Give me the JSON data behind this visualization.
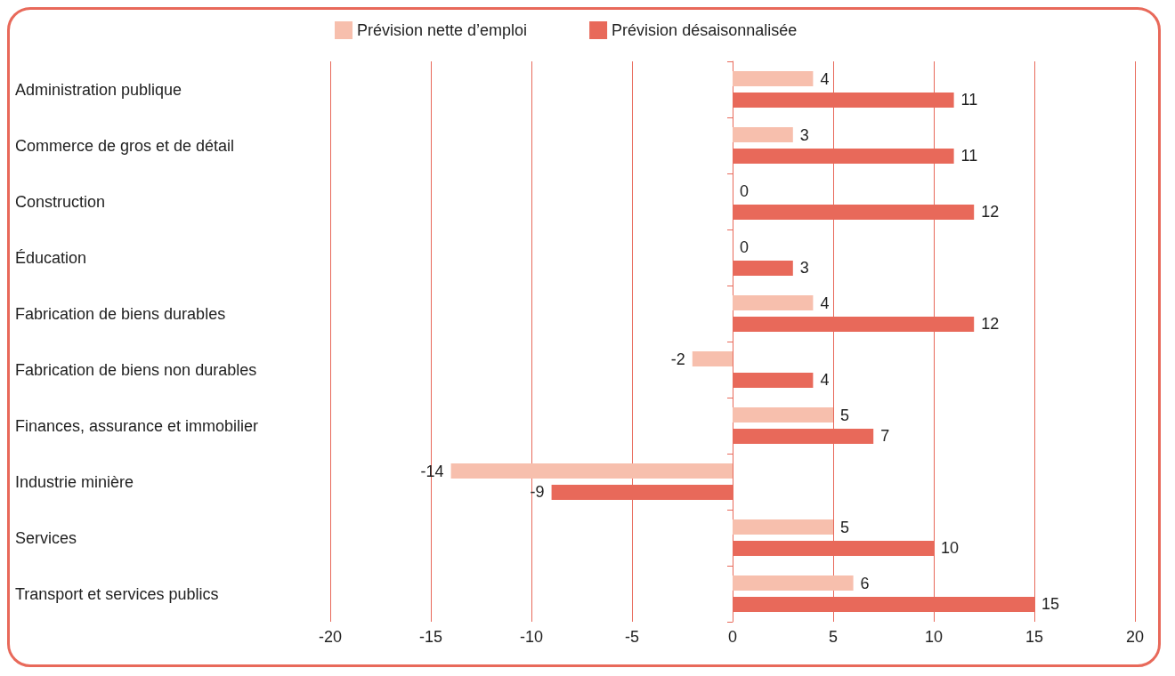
{
  "chart_data": {
    "type": "bar",
    "orientation": "horizontal",
    "categories": [
      "Administration publique",
      "Commerce de gros et de détail",
      "Construction",
      "Éducation",
      "Fabrication de biens durables",
      "Fabrication de biens non durables",
      "Finances, assurance et immobilier",
      "Industrie minière",
      "Services",
      "Transport et services publics"
    ],
    "series": [
      {
        "name": "Prévision nette d’emploi",
        "color": "#f7bfad",
        "values": [
          4,
          3,
          0,
          0,
          4,
          -2,
          5,
          -14,
          5,
          6
        ]
      },
      {
        "name": "Prévision désaisonnalisée",
        "color": "#e8695a",
        "values": [
          11,
          11,
          12,
          3,
          12,
          4,
          7,
          -9,
          10,
          15
        ]
      }
    ],
    "xlim": [
      -20,
      20
    ],
    "xticks": [
      -20,
      -15,
      -10,
      -5,
      0,
      5,
      10,
      15,
      20
    ],
    "grid": "x",
    "legend": "top",
    "data_labels": true
  }
}
